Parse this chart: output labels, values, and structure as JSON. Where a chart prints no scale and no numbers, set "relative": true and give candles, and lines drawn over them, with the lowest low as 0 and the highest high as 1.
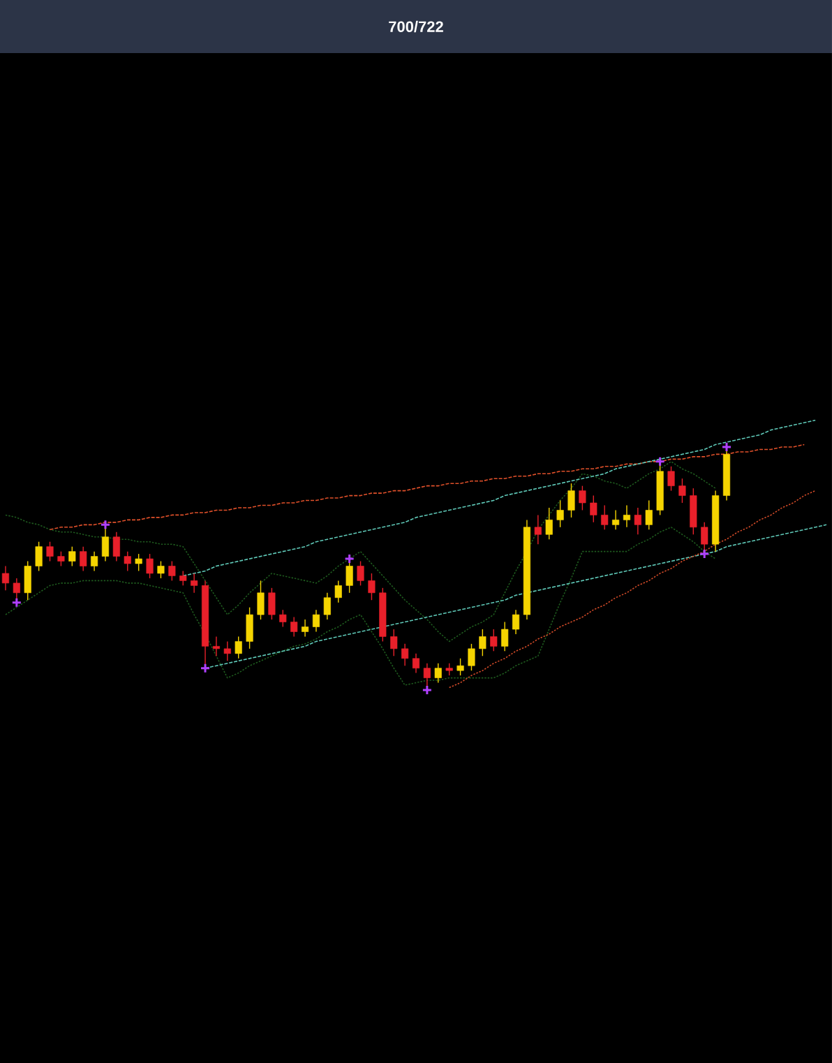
{
  "chart_data": {
    "type": "candlestick",
    "title": "700/722",
    "relative": true,
    "tick_labels": false,
    "categories": [
      null,
      null,
      null,
      null,
      null,
      null,
      null,
      null,
      null,
      null,
      null,
      null,
      null,
      null,
      null,
      null,
      null,
      null,
      null,
      null,
      null,
      null,
      null,
      null,
      null,
      null,
      null,
      null,
      null,
      null,
      null,
      null,
      null,
      null,
      null,
      null,
      null,
      null,
      null,
      null,
      null,
      null,
      null,
      null,
      null,
      null,
      null,
      null,
      null,
      null,
      null,
      null,
      null,
      null,
      null,
      null,
      null,
      null,
      null,
      null,
      null,
      null,
      null,
      null,
      null,
      null,
      null,
      null,
      null,
      null,
      null,
      null,
      null,
      null,
      null
    ],
    "ohlc": [
      [
        0.48,
        0.51,
        0.41,
        0.44
      ],
      [
        0.44,
        0.46,
        0.36,
        0.4
      ],
      [
        0.4,
        0.53,
        0.37,
        0.51
      ],
      [
        0.51,
        0.61,
        0.49,
        0.59
      ],
      [
        0.59,
        0.61,
        0.53,
        0.55
      ],
      [
        0.55,
        0.57,
        0.51,
        0.53
      ],
      [
        0.53,
        0.59,
        0.51,
        0.57
      ],
      [
        0.57,
        0.59,
        0.49,
        0.51
      ],
      [
        0.51,
        0.57,
        0.49,
        0.55
      ],
      [
        0.55,
        0.68,
        0.53,
        0.63
      ],
      [
        0.63,
        0.65,
        0.53,
        0.55
      ],
      [
        0.55,
        0.57,
        0.49,
        0.52
      ],
      [
        0.52,
        0.56,
        0.49,
        0.54
      ],
      [
        0.54,
        0.56,
        0.46,
        0.48
      ],
      [
        0.48,
        0.53,
        0.46,
        0.51
      ],
      [
        0.51,
        0.53,
        0.45,
        0.47
      ],
      [
        0.47,
        0.49,
        0.43,
        0.45
      ],
      [
        0.45,
        0.48,
        0.4,
        0.43
      ],
      [
        0.43,
        0.45,
        0.09,
        0.18
      ],
      [
        0.18,
        0.22,
        0.14,
        0.17
      ],
      [
        0.17,
        0.2,
        0.12,
        0.15
      ],
      [
        0.15,
        0.22,
        0.13,
        0.2
      ],
      [
        0.2,
        0.34,
        0.17,
        0.31
      ],
      [
        0.31,
        0.45,
        0.29,
        0.4
      ],
      [
        0.4,
        0.42,
        0.29,
        0.31
      ],
      [
        0.31,
        0.33,
        0.26,
        0.28
      ],
      [
        0.28,
        0.3,
        0.22,
        0.24
      ],
      [
        0.24,
        0.29,
        0.22,
        0.26
      ],
      [
        0.26,
        0.33,
        0.24,
        0.31
      ],
      [
        0.31,
        0.4,
        0.29,
        0.38
      ],
      [
        0.38,
        0.45,
        0.36,
        0.43
      ],
      [
        0.43,
        0.54,
        0.4,
        0.51
      ],
      [
        0.51,
        0.53,
        0.43,
        0.45
      ],
      [
        0.45,
        0.48,
        0.37,
        0.4
      ],
      [
        0.4,
        0.42,
        0.2,
        0.22
      ],
      [
        0.22,
        0.25,
        0.14,
        0.17
      ],
      [
        0.17,
        0.19,
        0.1,
        0.13
      ],
      [
        0.13,
        0.15,
        0.07,
        0.09
      ],
      [
        0.09,
        0.11,
        0.0,
        0.05
      ],
      [
        0.05,
        0.11,
        0.03,
        0.09
      ],
      [
        0.09,
        0.11,
        0.06,
        0.08
      ],
      [
        0.08,
        0.13,
        0.06,
        0.1
      ],
      [
        0.1,
        0.19,
        0.08,
        0.17
      ],
      [
        0.17,
        0.25,
        0.14,
        0.22
      ],
      [
        0.22,
        0.25,
        0.16,
        0.18
      ],
      [
        0.18,
        0.28,
        0.16,
        0.25
      ],
      [
        0.25,
        0.33,
        0.23,
        0.31
      ],
      [
        0.31,
        0.7,
        0.29,
        0.67
      ],
      [
        0.67,
        0.72,
        0.6,
        0.64
      ],
      [
        0.64,
        0.75,
        0.62,
        0.7
      ],
      [
        0.7,
        0.78,
        0.67,
        0.74
      ],
      [
        0.74,
        0.85,
        0.71,
        0.82
      ],
      [
        0.82,
        0.84,
        0.74,
        0.77
      ],
      [
        0.77,
        0.8,
        0.69,
        0.72
      ],
      [
        0.72,
        0.76,
        0.66,
        0.68
      ],
      [
        0.68,
        0.74,
        0.66,
        0.7
      ],
      [
        0.7,
        0.76,
        0.67,
        0.72
      ],
      [
        0.72,
        0.75,
        0.64,
        0.68
      ],
      [
        0.68,
        0.78,
        0.66,
        0.74
      ],
      [
        0.74,
        0.94,
        0.72,
        0.9
      ],
      [
        0.9,
        0.92,
        0.82,
        0.84
      ],
      [
        0.84,
        0.87,
        0.77,
        0.8
      ],
      [
        0.8,
        0.83,
        0.64,
        0.67
      ],
      [
        0.67,
        0.69,
        0.56,
        0.6
      ],
      [
        0.6,
        0.82,
        0.57,
        0.8
      ],
      [
        0.8,
        1.0,
        0.78,
        0.97
      ],
      null,
      null,
      null,
      null,
      null,
      null,
      null,
      null,
      null
    ],
    "colors": [
      "#e8202a",
      "#e8202a",
      "#f5d400",
      "#f5d400",
      "#e8202a",
      "#e8202a",
      "#f5d400",
      "#e8202a",
      "#f5d400",
      "#f5d400",
      "#e8202a",
      "#e8202a",
      "#f5d400",
      "#e8202a",
      "#f5d400",
      "#e8202a",
      "#e8202a",
      "#e8202a",
      "#e8202a",
      "#e8202a",
      "#e8202a",
      "#f5d400",
      "#f5d400",
      "#f5d400",
      "#e8202a",
      "#e8202a",
      "#e8202a",
      "#f5d400",
      "#f5d400",
      "#f5d400",
      "#f5d400",
      "#f5d400",
      "#e8202a",
      "#e8202a",
      "#e8202a",
      "#e8202a",
      "#e8202a",
      "#e8202a",
      "#e8202a",
      "#f5d400",
      "#e8202a",
      "#f5d400",
      "#f5d400",
      "#f5d400",
      "#e8202a",
      "#f5d400",
      "#f5d400",
      "#f5d400",
      "#e8202a",
      "#f5d400",
      "#f5d400",
      "#f5d400",
      "#e8202a",
      "#e8202a",
      "#e8202a",
      "#f5d400",
      "#f5d400",
      "#e8202a",
      "#f5d400",
      "#f5d400",
      "#e8202a",
      "#e8202a",
      "#e8202a",
      "#e8202a",
      "#f5d400",
      "#f5d400",
      null,
      null,
      null,
      null,
      null,
      null,
      null,
      null,
      null
    ],
    "series": [
      {
        "type": "line",
        "color": "#1e5a1e",
        "line_style": "dotted",
        "values": [
          0.72,
          0.71,
          0.69,
          0.68,
          0.66,
          0.65,
          0.65,
          0.64,
          0.63,
          0.63,
          0.62,
          0.62,
          0.61,
          0.61,
          0.6,
          0.6,
          0.59,
          0.52,
          0.45,
          0.38,
          0.31,
          0.35,
          0.4,
          0.44,
          0.48,
          0.47,
          0.46,
          0.45,
          0.44,
          0.47,
          0.51,
          0.54,
          0.57,
          0.52,
          0.47,
          0.42,
          0.37,
          0.33,
          0.29,
          0.24,
          0.2,
          0.23,
          0.26,
          0.28,
          0.31,
          0.4,
          0.49,
          0.57,
          0.66,
          0.72,
          0.78,
          0.83,
          0.89,
          0.88,
          0.86,
          0.85,
          0.83,
          0.86,
          0.89,
          0.91,
          0.94,
          0.91,
          0.89,
          0.86,
          0.83,
          null,
          null,
          null,
          null,
          null,
          null,
          null,
          null,
          null,
          null
        ]
      },
      {
        "type": "line",
        "color": "#1e5a1e",
        "line_style": "dotted",
        "values": [
          0.31,
          0.34,
          0.37,
          0.4,
          0.43,
          0.44,
          0.44,
          0.45,
          0.45,
          0.45,
          0.45,
          0.44,
          0.44,
          0.43,
          0.42,
          0.41,
          0.4,
          0.31,
          0.23,
          0.14,
          0.05,
          0.07,
          0.1,
          0.12,
          0.14,
          0.16,
          0.18,
          0.19,
          0.21,
          0.24,
          0.26,
          0.29,
          0.31,
          0.24,
          0.17,
          0.09,
          0.02,
          0.03,
          0.04,
          0.04,
          0.05,
          0.05,
          0.05,
          0.05,
          0.05,
          0.07,
          0.1,
          0.12,
          0.14,
          0.25,
          0.36,
          0.46,
          0.57,
          0.57,
          0.57,
          0.57,
          0.57,
          0.6,
          0.62,
          0.65,
          0.67,
          0.64,
          0.61,
          0.57,
          0.54,
          null,
          null,
          null,
          null,
          null,
          null,
          null,
          null,
          null,
          null
        ]
      },
      {
        "type": "line",
        "color": "#e0502a",
        "line_style": "dashed",
        "values": [
          null,
          null,
          null,
          null,
          0.66,
          0.67,
          0.67,
          0.68,
          0.68,
          0.69,
          0.69,
          0.7,
          0.7,
          0.71,
          0.71,
          0.72,
          0.72,
          0.73,
          0.73,
          0.74,
          0.74,
          0.75,
          0.75,
          0.76,
          0.76,
          0.77,
          0.77,
          0.78,
          0.78,
          0.79,
          0.79,
          0.8,
          0.8,
          0.81,
          0.81,
          0.82,
          0.82,
          0.83,
          0.84,
          0.84,
          0.85,
          0.85,
          0.86,
          0.86,
          0.87,
          0.87,
          0.88,
          0.88,
          0.89,
          0.89,
          0.9,
          0.9,
          0.91,
          0.91,
          0.92,
          0.92,
          0.93,
          0.93,
          0.94,
          0.94,
          0.95,
          0.95,
          0.96,
          0.96,
          0.97,
          0.97,
          0.98,
          0.98,
          0.99,
          0.99,
          1.0,
          1.0,
          1.01,
          null,
          null
        ]
      },
      {
        "type": "line",
        "color": "#5fc9b8",
        "line_style": "dashed",
        "values": [
          null,
          null,
          null,
          null,
          null,
          null,
          null,
          null,
          null,
          null,
          null,
          null,
          null,
          null,
          null,
          null,
          0.47,
          0.48,
          0.49,
          0.51,
          0.52,
          0.53,
          0.54,
          0.55,
          0.56,
          0.57,
          0.58,
          0.59,
          0.61,
          0.62,
          0.63,
          0.64,
          0.65,
          0.66,
          0.67,
          0.68,
          0.69,
          0.71,
          0.72,
          0.73,
          0.74,
          0.75,
          0.76,
          0.77,
          0.78,
          0.8,
          0.81,
          0.82,
          0.83,
          0.84,
          0.85,
          0.86,
          0.87,
          0.88,
          0.89,
          0.91,
          0.92,
          0.93,
          0.94,
          0.95,
          0.96,
          0.97,
          0.98,
          0.99,
          1.01,
          1.02,
          1.03,
          1.04,
          1.05,
          1.07,
          1.08,
          1.09,
          1.1,
          1.11,
          null
        ]
      },
      {
        "type": "line",
        "color": "#5fc9b8",
        "line_style": "dashed",
        "values": [
          null,
          null,
          null,
          null,
          null,
          null,
          null,
          null,
          null,
          null,
          null,
          null,
          null,
          null,
          null,
          null,
          null,
          null,
          0.09,
          0.1,
          0.11,
          0.12,
          0.13,
          0.14,
          0.15,
          0.16,
          0.17,
          0.18,
          0.2,
          0.21,
          0.22,
          0.23,
          0.24,
          0.25,
          0.26,
          0.27,
          0.28,
          0.29,
          0.3,
          0.31,
          0.32,
          0.33,
          0.34,
          0.35,
          0.36,
          0.37,
          0.39,
          0.4,
          0.41,
          0.42,
          0.43,
          0.44,
          0.45,
          0.46,
          0.47,
          0.48,
          0.49,
          0.5,
          0.51,
          0.52,
          0.53,
          0.54,
          0.55,
          0.56,
          0.57,
          0.59,
          0.6,
          0.61,
          0.62,
          0.63,
          0.64,
          0.65,
          0.66,
          0.67,
          0.68
        ]
      },
      {
        "type": "line",
        "color": "#d04a28",
        "line_style": "dotted",
        "values": [
          null,
          null,
          null,
          null,
          null,
          null,
          null,
          null,
          null,
          null,
          null,
          null,
          null,
          null,
          null,
          null,
          null,
          null,
          null,
          null,
          null,
          null,
          null,
          null,
          null,
          null,
          null,
          null,
          null,
          null,
          null,
          null,
          null,
          null,
          null,
          null,
          null,
          null,
          null,
          null,
          0.01,
          0.03,
          0.06,
          0.08,
          0.11,
          0.13,
          0.16,
          0.18,
          0.21,
          0.23,
          0.26,
          0.28,
          0.3,
          0.33,
          0.35,
          0.38,
          0.4,
          0.43,
          0.45,
          0.48,
          0.5,
          0.53,
          0.55,
          0.57,
          0.6,
          0.62,
          0.65,
          0.67,
          0.7,
          0.72,
          0.75,
          0.77,
          0.8,
          0.82,
          null
        ]
      },
      {
        "type": "scatter",
        "color": "#b040ff",
        "marker": "cross",
        "values": [
          null,
          0.36,
          null,
          null,
          null,
          null,
          null,
          null,
          null,
          0.68,
          null,
          null,
          null,
          null,
          null,
          null,
          null,
          null,
          0.09,
          null,
          null,
          null,
          null,
          null,
          null,
          null,
          null,
          null,
          null,
          null,
          null,
          0.54,
          null,
          null,
          null,
          null,
          null,
          null,
          0.0,
          null,
          null,
          null,
          null,
          null,
          null,
          null,
          null,
          null,
          null,
          null,
          null,
          null,
          null,
          null,
          null,
          null,
          null,
          null,
          null,
          0.94,
          null,
          null,
          null,
          0.56,
          null,
          1.0,
          null,
          null,
          null,
          null,
          null,
          null,
          null,
          null,
          null
        ]
      }
    ]
  }
}
